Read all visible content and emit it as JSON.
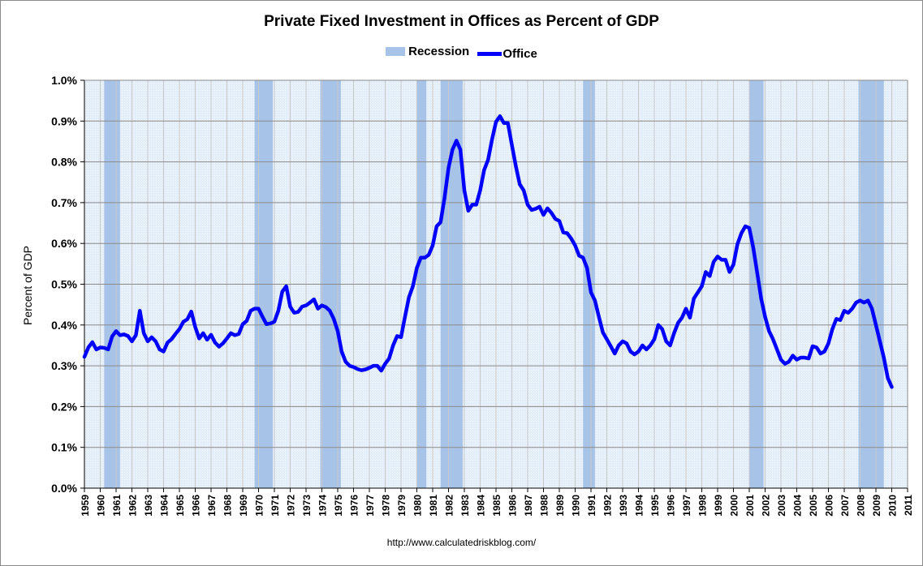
{
  "chart_data": {
    "type": "line",
    "title": "Private Fixed Investment in Offices as Percent of GDP",
    "ylabel": "Percent of GDP",
    "xlabel": "",
    "ylim": [
      0,
      1.0
    ],
    "yticks": [
      "0.0%",
      "0.1%",
      "0.2%",
      "0.3%",
      "0.4%",
      "0.5%",
      "0.6%",
      "0.7%",
      "0.8%",
      "0.9%",
      "1.0%"
    ],
    "xlim": [
      1959,
      2011
    ],
    "xticks": [
      "1959",
      "1960",
      "1961",
      "1962",
      "1963",
      "1964",
      "1965",
      "1966",
      "1967",
      "1968",
      "1969",
      "1970",
      "1971",
      "1972",
      "1973",
      "1974",
      "1975",
      "1976",
      "1977",
      "1978",
      "1979",
      "1980",
      "1981",
      "1982",
      "1983",
      "1984",
      "1985",
      "1986",
      "1987",
      "1988",
      "1989",
      "1990",
      "1991",
      "1992",
      "1993",
      "1994",
      "1995",
      "1996",
      "1997",
      "1998",
      "1999",
      "2000",
      "2001",
      "2002",
      "2003",
      "2004",
      "2005",
      "2006",
      "2007",
      "2008",
      "2009",
      "2010",
      "2011"
    ],
    "grid": true,
    "legend": {
      "position": "top-center",
      "entries": [
        "Recession",
        "Office"
      ]
    },
    "recessions": [
      [
        1960.25,
        1961.25
      ],
      [
        1969.75,
        1970.9
      ],
      [
        1973.9,
        1975.2
      ],
      [
        1980.0,
        1980.6
      ],
      [
        1981.5,
        1982.9
      ],
      [
        1990.5,
        1991.25
      ],
      [
        2001.0,
        2001.9
      ],
      [
        2007.9,
        2009.5
      ]
    ],
    "series": [
      {
        "name": "Office",
        "color": "#0000ff",
        "x": [
          1959.0,
          1959.25,
          1959.5,
          1959.75,
          1960.0,
          1960.25,
          1960.5,
          1960.75,
          1961.0,
          1961.25,
          1961.5,
          1961.75,
          1962.0,
          1962.25,
          1962.5,
          1962.75,
          1963.0,
          1963.25,
          1963.5,
          1963.75,
          1964.0,
          1964.25,
          1964.5,
          1964.75,
          1965.0,
          1965.25,
          1965.5,
          1965.75,
          1966.0,
          1966.25,
          1966.5,
          1966.75,
          1967.0,
          1967.25,
          1967.5,
          1967.75,
          1968.0,
          1968.25,
          1968.5,
          1968.75,
          1969.0,
          1969.25,
          1969.5,
          1969.75,
          1970.0,
          1970.25,
          1970.5,
          1970.75,
          1971.0,
          1971.25,
          1971.5,
          1971.75,
          1972.0,
          1972.25,
          1972.5,
          1972.75,
          1973.0,
          1973.25,
          1973.5,
          1973.75,
          1974.0,
          1974.25,
          1974.5,
          1974.75,
          1975.0,
          1975.25,
          1975.5,
          1975.75,
          1976.0,
          1976.25,
          1976.5,
          1976.75,
          1977.0,
          1977.25,
          1977.5,
          1977.75,
          1978.0,
          1978.25,
          1978.5,
          1978.75,
          1979.0,
          1979.25,
          1979.5,
          1979.75,
          1980.0,
          1980.25,
          1980.5,
          1980.75,
          1981.0,
          1981.25,
          1981.5,
          1981.75,
          1982.0,
          1982.25,
          1982.5,
          1982.75,
          1983.0,
          1983.25,
          1983.5,
          1983.75,
          1984.0,
          1984.25,
          1984.5,
          1984.75,
          1985.0,
          1985.25,
          1985.5,
          1985.75,
          1986.0,
          1986.25,
          1986.5,
          1986.75,
          1987.0,
          1987.25,
          1987.5,
          1987.75,
          1988.0,
          1988.25,
          1988.5,
          1988.75,
          1989.0,
          1989.25,
          1989.5,
          1989.75,
          1990.0,
          1990.25,
          1990.5,
          1990.75,
          1991.0,
          1991.25,
          1991.5,
          1991.75,
          1992.0,
          1992.25,
          1992.5,
          1992.75,
          1993.0,
          1993.25,
          1993.5,
          1993.75,
          1994.0,
          1994.25,
          1994.5,
          1994.75,
          1995.0,
          1995.25,
          1995.5,
          1995.75,
          1996.0,
          1996.25,
          1996.5,
          1996.75,
          1997.0,
          1997.25,
          1997.5,
          1997.75,
          1998.0,
          1998.25,
          1998.5,
          1998.75,
          1999.0,
          1999.25,
          1999.5,
          1999.75,
          2000.0,
          2000.25,
          2000.5,
          2000.75,
          2001.0,
          2001.25,
          2001.5,
          2001.75,
          2002.0,
          2002.25,
          2002.5,
          2002.75,
          2003.0,
          2003.25,
          2003.5,
          2003.75,
          2004.0,
          2004.25,
          2004.5,
          2004.75,
          2005.0,
          2005.25,
          2005.5,
          2005.75,
          2006.0,
          2006.25,
          2006.5,
          2006.75,
          2007.0,
          2007.25,
          2007.5,
          2007.75,
          2008.0,
          2008.25,
          2008.5,
          2008.75,
          2009.0,
          2009.25,
          2009.5,
          2009.75,
          2010.0
        ],
        "values": [
          0.322,
          0.345,
          0.358,
          0.34,
          0.345,
          0.344,
          0.34,
          0.372,
          0.385,
          0.375,
          0.377,
          0.373,
          0.36,
          0.375,
          0.435,
          0.38,
          0.36,
          0.37,
          0.36,
          0.34,
          0.335,
          0.357,
          0.365,
          0.378,
          0.39,
          0.408,
          0.414,
          0.433,
          0.395,
          0.367,
          0.38,
          0.364,
          0.376,
          0.357,
          0.347,
          0.355,
          0.367,
          0.38,
          0.375,
          0.378,
          0.402,
          0.41,
          0.435,
          0.44,
          0.44,
          0.42,
          0.402,
          0.404,
          0.408,
          0.435,
          0.482,
          0.495,
          0.445,
          0.43,
          0.432,
          0.445,
          0.448,
          0.455,
          0.463,
          0.44,
          0.448,
          0.444,
          0.435,
          0.415,
          0.385,
          0.335,
          0.31,
          0.3,
          0.297,
          0.292,
          0.289,
          0.291,
          0.295,
          0.3,
          0.3,
          0.288,
          0.305,
          0.318,
          0.35,
          0.373,
          0.37,
          0.42,
          0.468,
          0.495,
          0.54,
          0.565,
          0.565,
          0.572,
          0.595,
          0.642,
          0.652,
          0.712,
          0.785,
          0.83,
          0.852,
          0.83,
          0.73,
          0.68,
          0.695,
          0.695,
          0.73,
          0.78,
          0.805,
          0.855,
          0.898,
          0.912,
          0.895,
          0.895,
          0.842,
          0.79,
          0.745,
          0.73,
          0.695,
          0.682,
          0.685,
          0.69,
          0.67,
          0.686,
          0.675,
          0.66,
          0.655,
          0.627,
          0.625,
          0.612,
          0.595,
          0.57,
          0.565,
          0.54,
          0.48,
          0.46,
          0.42,
          0.382,
          0.365,
          0.348,
          0.33,
          0.35,
          0.36,
          0.355,
          0.335,
          0.328,
          0.335,
          0.35,
          0.34,
          0.35,
          0.365,
          0.4,
          0.39,
          0.36,
          0.35,
          0.38,
          0.405,
          0.418,
          0.44,
          0.418,
          0.465,
          0.48,
          0.495,
          0.53,
          0.52,
          0.555,
          0.568,
          0.56,
          0.56,
          0.53,
          0.548,
          0.598,
          0.625,
          0.642,
          0.638,
          0.59,
          0.528,
          0.465,
          0.42,
          0.385,
          0.365,
          0.34,
          0.315,
          0.305,
          0.31,
          0.325,
          0.315,
          0.32,
          0.32,
          0.318,
          0.348,
          0.345,
          0.33,
          0.335,
          0.355,
          0.39,
          0.415,
          0.412,
          0.435,
          0.43,
          0.44,
          0.455,
          0.46,
          0.455,
          0.46,
          0.44,
          0.4,
          0.36,
          0.32,
          0.27,
          0.248
        ]
      }
    ]
  },
  "legend": {
    "recession_label": "Recession",
    "office_label": "Office"
  },
  "source_url": "http://www.calculatedriskblog.com/"
}
